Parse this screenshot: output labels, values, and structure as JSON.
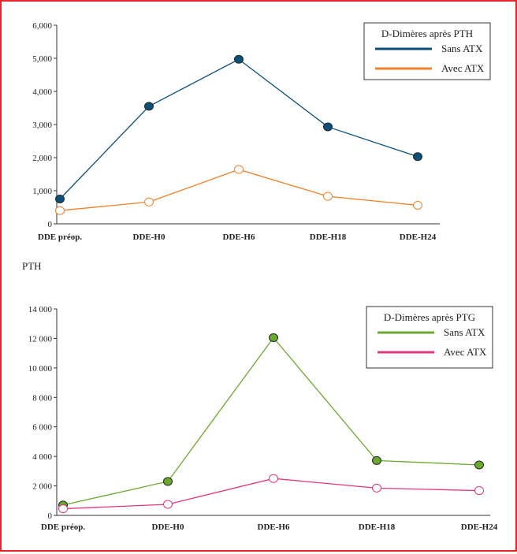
{
  "chart_data": [
    {
      "type": "line",
      "categories": [
        "DDE préop.",
        "DDE-H0",
        "DDE-H6",
        "DDE-H18",
        "DDE-H24"
      ],
      "ylim": [
        0,
        6000
      ],
      "yticks": [
        0,
        1000,
        2000,
        3000,
        4000,
        5000,
        6000
      ],
      "ytick_labels": [
        "0",
        "1,000",
        "2,000",
        "3,000",
        "4,000",
        "5,000",
        "6,000"
      ],
      "legend_title": "D-Dimères après PTH",
      "legend_position": "top-right",
      "series": [
        {
          "name": "Sans ATX",
          "values": [
            750,
            3550,
            4970,
            2930,
            2030
          ],
          "color": "#0d4f7c",
          "marker_fill": "#0d4f7c"
        },
        {
          "name": "Avec ATX",
          "values": [
            400,
            660,
            1640,
            830,
            560
          ],
          "color": "#f0812a",
          "marker_fill": "#ffffff"
        }
      ]
    },
    {
      "type": "line",
      "categories": [
        "DDE préop.",
        "DDE-H0",
        "DDE-H6",
        "DDE-H18",
        "DDE-H24"
      ],
      "ylim": [
        0,
        14000
      ],
      "yticks": [
        0,
        2000,
        4000,
        6000,
        8000,
        10000,
        12000,
        14000
      ],
      "ytick_labels": [
        "0",
        "2 000",
        "4 000",
        "6 000",
        "8 000",
        "10 000",
        "12 000",
        "14 000"
      ],
      "legend_title": "D-Dimères après PTG",
      "legend_position": "top-right",
      "series": [
        {
          "name": "Sans ATX",
          "values": [
            700,
            2300,
            12050,
            3720,
            3420
          ],
          "color": "#6aa82f",
          "marker_fill": "#6aa82f"
        },
        {
          "name": "Avec ATX",
          "values": [
            450,
            750,
            2500,
            1850,
            1680
          ],
          "color": "#e0387d",
          "marker_fill": "#ffffff"
        }
      ]
    }
  ],
  "section_label": "PTH"
}
